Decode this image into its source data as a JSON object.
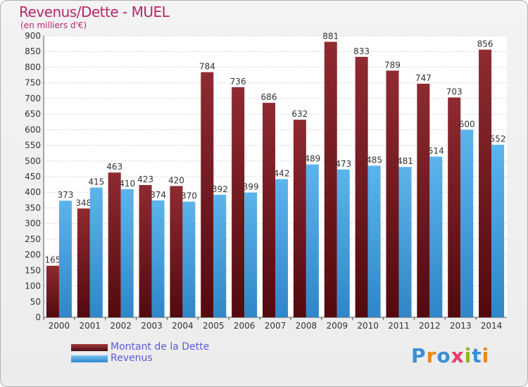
{
  "title": "Revenus/Dette - MUEL",
  "subtitle": "(en milliers d'€)",
  "logo": "Proxiti",
  "colors": {
    "title": "#b8256a",
    "debt": "#7a1f25",
    "revenue": "#4ca8e6",
    "legend_text": "#5a5adc"
  },
  "chart_data": {
    "type": "bar",
    "title": "Revenus/Dette - MUEL",
    "subtitle": "(en milliers d'€)",
    "categories": [
      "2000",
      "2001",
      "2002",
      "2003",
      "2004",
      "2005",
      "2006",
      "2007",
      "2008",
      "2009",
      "2010",
      "2011",
      "2012",
      "2013",
      "2014"
    ],
    "series": [
      {
        "name": "Montant de la Dette",
        "values": [
          165,
          348,
          463,
          423,
          420,
          784,
          736,
          686,
          632,
          881,
          833,
          789,
          747,
          703,
          856
        ]
      },
      {
        "name": "Revenus",
        "values": [
          373,
          415,
          410,
          374,
          370,
          392,
          399,
          442,
          489,
          473,
          485,
          481,
          514,
          600,
          552
        ]
      }
    ],
    "ylim": [
      0,
      900
    ],
    "yticks": [
      0,
      50,
      100,
      150,
      200,
      250,
      300,
      350,
      400,
      450,
      500,
      550,
      600,
      650,
      700,
      750,
      800,
      850,
      900
    ],
    "grid": true,
    "legend": "bottom-left"
  }
}
